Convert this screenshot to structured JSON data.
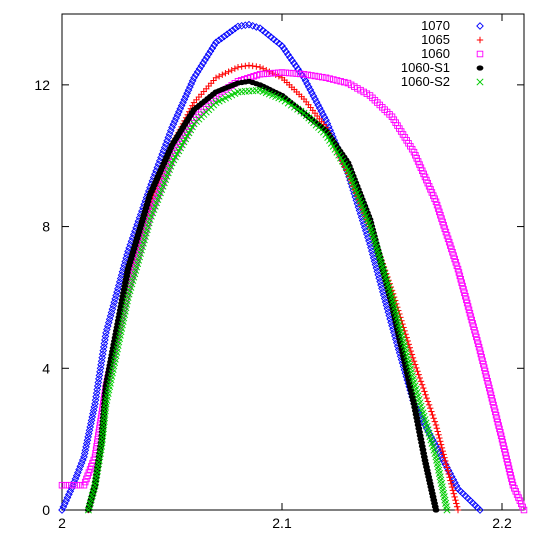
{
  "chart_data": {
    "type": "scatter",
    "title": "",
    "xlabel": "",
    "ylabel": "",
    "xlim": [
      2.0,
      2.21
    ],
    "ylim": [
      0,
      14
    ],
    "x_ticks": [
      2.0,
      2.1,
      2.2
    ],
    "x_tick_labels": [
      "2",
      "2.1",
      "2.2"
    ],
    "y_ticks": [
      0,
      4,
      8,
      12
    ],
    "y_tick_labels": [
      "0",
      "4",
      "8",
      "12"
    ],
    "grid": false,
    "legend_position": "top-right",
    "series": [
      {
        "name": "1070",
        "marker": "diamond",
        "color": "#0000ff",
        "points": [
          [
            2.0,
            0.0
          ],
          [
            2.005,
            0.7
          ],
          [
            2.01,
            1.5
          ],
          [
            2.015,
            3.0
          ],
          [
            2.02,
            5.0
          ],
          [
            2.03,
            7.3
          ],
          [
            2.04,
            9.1
          ],
          [
            2.05,
            10.8
          ],
          [
            2.06,
            12.2
          ],
          [
            2.07,
            13.2
          ],
          [
            2.08,
            13.65
          ],
          [
            2.085,
            13.7
          ],
          [
            2.09,
            13.6
          ],
          [
            2.1,
            13.1
          ],
          [
            2.11,
            12.2
          ],
          [
            2.12,
            11.0
          ],
          [
            2.13,
            9.5
          ],
          [
            2.14,
            7.5
          ],
          [
            2.15,
            5.2
          ],
          [
            2.16,
            3.0
          ],
          [
            2.17,
            1.8
          ],
          [
            2.18,
            0.6
          ],
          [
            2.19,
            0.0
          ]
        ]
      },
      {
        "name": "1065",
        "marker": "plus",
        "color": "#ff0000",
        "points": [
          [
            2.012,
            0.0
          ],
          [
            2.015,
            0.7
          ],
          [
            2.018,
            2.0
          ],
          [
            2.02,
            3.5
          ],
          [
            2.03,
            6.5
          ],
          [
            2.04,
            8.6
          ],
          [
            2.05,
            10.3
          ],
          [
            2.06,
            11.5
          ],
          [
            2.07,
            12.2
          ],
          [
            2.08,
            12.5
          ],
          [
            2.085,
            12.55
          ],
          [
            2.09,
            12.5
          ],
          [
            2.1,
            12.2
          ],
          [
            2.11,
            11.6
          ],
          [
            2.12,
            10.8
          ],
          [
            2.13,
            9.5
          ],
          [
            2.14,
            8.0
          ],
          [
            2.15,
            6.2
          ],
          [
            2.16,
            4.2
          ],
          [
            2.17,
            2.4
          ],
          [
            2.175,
            1.2
          ],
          [
            2.18,
            0.0
          ]
        ]
      },
      {
        "name": "1060",
        "marker": "square",
        "color": "#ff00ff",
        "points": [
          [
            2.0,
            0.7
          ],
          [
            2.01,
            0.7
          ],
          [
            2.015,
            1.5
          ],
          [
            2.02,
            3.5
          ],
          [
            2.03,
            6.2
          ],
          [
            2.04,
            8.3
          ],
          [
            2.05,
            9.9
          ],
          [
            2.06,
            11.0
          ],
          [
            2.07,
            11.7
          ],
          [
            2.08,
            12.1
          ],
          [
            2.09,
            12.3
          ],
          [
            2.1,
            12.35
          ],
          [
            2.11,
            12.3
          ],
          [
            2.12,
            12.2
          ],
          [
            2.13,
            12.05
          ],
          [
            2.14,
            11.7
          ],
          [
            2.15,
            11.1
          ],
          [
            2.16,
            10.1
          ],
          [
            2.17,
            8.7
          ],
          [
            2.18,
            6.8
          ],
          [
            2.19,
            4.5
          ],
          [
            2.2,
            2.0
          ],
          [
            2.205,
            0.7
          ],
          [
            2.21,
            0.0
          ]
        ]
      },
      {
        "name": "1060-S1",
        "marker": "dot",
        "color": "#000000",
        "points": [
          [
            2.012,
            0.0
          ],
          [
            2.015,
            0.7
          ],
          [
            2.018,
            2.0
          ],
          [
            2.02,
            3.5
          ],
          [
            2.03,
            6.8
          ],
          [
            2.04,
            8.9
          ],
          [
            2.05,
            10.3
          ],
          [
            2.06,
            11.3
          ],
          [
            2.07,
            11.8
          ],
          [
            2.08,
            12.05
          ],
          [
            2.085,
            12.1
          ],
          [
            2.09,
            12.0
          ],
          [
            2.1,
            11.7
          ],
          [
            2.11,
            11.2
          ],
          [
            2.12,
            10.7
          ],
          [
            2.13,
            9.8
          ],
          [
            2.14,
            8.2
          ],
          [
            2.15,
            5.8
          ],
          [
            2.16,
            3.0
          ],
          [
            2.165,
            1.4
          ],
          [
            2.17,
            0.0
          ]
        ]
      },
      {
        "name": "1060-S2",
        "marker": "cross",
        "color": "#00cc00",
        "points": [
          [
            2.012,
            0.0
          ],
          [
            2.015,
            0.7
          ],
          [
            2.018,
            1.8
          ],
          [
            2.02,
            3.0
          ],
          [
            2.03,
            6.0
          ],
          [
            2.04,
            8.2
          ],
          [
            2.05,
            9.8
          ],
          [
            2.06,
            10.9
          ],
          [
            2.07,
            11.5
          ],
          [
            2.08,
            11.8
          ],
          [
            2.09,
            11.85
          ],
          [
            2.1,
            11.6
          ],
          [
            2.11,
            11.2
          ],
          [
            2.12,
            10.6
          ],
          [
            2.13,
            9.6
          ],
          [
            2.14,
            8.0
          ],
          [
            2.15,
            6.0
          ],
          [
            2.16,
            3.6
          ],
          [
            2.17,
            1.5
          ],
          [
            2.175,
            0.0
          ]
        ]
      }
    ]
  }
}
